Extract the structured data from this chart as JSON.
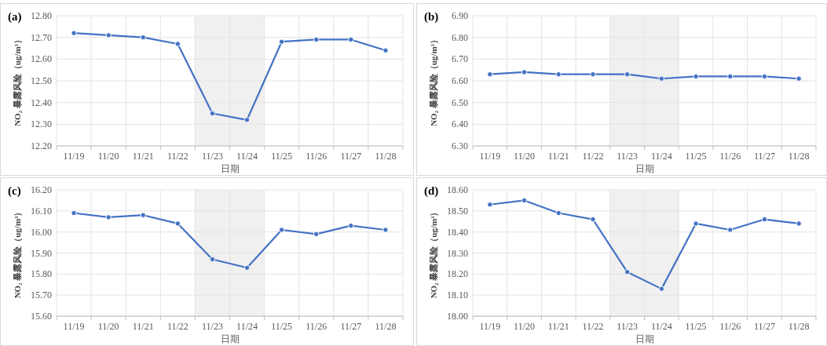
{
  "chart_data": [
    {
      "type": "line",
      "title": "(a)",
      "xlabel": "日期",
      "ylabel": "NO₂ 暴露风险（ug/m³）",
      "categories": [
        "11/19",
        "11/20",
        "11/21",
        "11/22",
        "11/23",
        "11/24",
        "11/25",
        "11/26",
        "11/27",
        "11/28"
      ],
      "series": [
        {
          "color": "#4472c4",
          "values": [
            12.72,
            12.71,
            12.7,
            12.67,
            12.35,
            12.32,
            12.68,
            12.69,
            12.69,
            12.64
          ]
        }
      ],
      "ylim": [
        12.2,
        12.8
      ],
      "yticks": [
        {
          "value": 12.2,
          "label": "12.20"
        },
        {
          "value": 12.3,
          "label": "12.30"
        },
        {
          "value": 12.4,
          "label": "12.40"
        },
        {
          "value": 12.5,
          "label": "12.50"
        },
        {
          "value": 12.6,
          "label": "12.60"
        },
        {
          "value": 12.7,
          "label": "12.70"
        },
        {
          "value": 12.8,
          "label": "12.80"
        }
      ],
      "bands": [
        {
          "axis": "x",
          "from": "11/23",
          "to": "11/24",
          "color": "#f0f0f0"
        }
      ],
      "grid": true,
      "marker": "circle",
      "line_style": "solid"
    },
    {
      "type": "line",
      "title": "(b)",
      "xlabel": "日期",
      "ylabel": "NO₂ 暴露风险（ug/m³）",
      "categories": [
        "11/19",
        "11/20",
        "11/21",
        "11/22",
        "11/23",
        "11/24",
        "11/25",
        "11/26",
        "11/27",
        "11/28"
      ],
      "series": [
        {
          "color": "#4472c4",
          "values": [
            6.63,
            6.64,
            6.63,
            6.63,
            6.63,
            6.61,
            6.62,
            6.62,
            6.62,
            6.61
          ]
        }
      ],
      "ylim": [
        6.3,
        6.9
      ],
      "yticks": [
        {
          "value": 6.3,
          "label": "6.30"
        },
        {
          "value": 6.4,
          "label": "6.40"
        },
        {
          "value": 6.5,
          "label": "6.50"
        },
        {
          "value": 6.6,
          "label": "6.60"
        },
        {
          "value": 6.7,
          "label": "6.70"
        },
        {
          "value": 6.8,
          "label": "6.80"
        },
        {
          "value": 6.9,
          "label": "6.90"
        }
      ],
      "bands": [
        {
          "axis": "x",
          "from": "11/23",
          "to": "11/24",
          "color": "#f0f0f0"
        }
      ],
      "grid": true,
      "marker": "circle",
      "line_style": "solid"
    },
    {
      "type": "line",
      "title": "(c)",
      "xlabel": "日期",
      "ylabel": "NO₂ 暴露风险（ug/m³）",
      "categories": [
        "11/19",
        "11/20",
        "11/21",
        "11/22",
        "11/23",
        "11/24",
        "11/25",
        "11/26",
        "11/27",
        "11/28"
      ],
      "series": [
        {
          "color": "#4472c4",
          "values": [
            16.09,
            16.07,
            16.08,
            16.04,
            15.87,
            15.83,
            16.01,
            15.99,
            16.03,
            16.01
          ]
        }
      ],
      "ylim": [
        15.6,
        16.2
      ],
      "yticks": [
        {
          "value": 15.6,
          "label": "15.60"
        },
        {
          "value": 15.7,
          "label": "15.70"
        },
        {
          "value": 15.8,
          "label": "15.80"
        },
        {
          "value": 15.9,
          "label": "15.90"
        },
        {
          "value": 16.0,
          "label": "16.00"
        },
        {
          "value": 16.1,
          "label": "16.10"
        },
        {
          "value": 16.2,
          "label": "16.20"
        }
      ],
      "bands": [
        {
          "axis": "x",
          "from": "11/23",
          "to": "11/24",
          "color": "#f0f0f0"
        }
      ],
      "grid": true,
      "marker": "circle",
      "line_style": "solid"
    },
    {
      "type": "line",
      "title": "(d)",
      "xlabel": "日期",
      "ylabel": "NO₂ 暴露风险（ug/m³）",
      "categories": [
        "11/19",
        "11/20",
        "11/21",
        "11/22",
        "11/23",
        "11/24",
        "11/25",
        "11/26",
        "11/27",
        "11/28"
      ],
      "series": [
        {
          "color": "#4472c4",
          "values": [
            18.53,
            18.55,
            18.49,
            18.46,
            18.21,
            18.13,
            18.44,
            18.41,
            18.46,
            18.44
          ]
        }
      ],
      "ylim": [
        18.0,
        18.6
      ],
      "yticks": [
        {
          "value": 18.0,
          "label": "18.00"
        },
        {
          "value": 18.1,
          "label": "18.10"
        },
        {
          "value": 18.2,
          "label": "18.20"
        },
        {
          "value": 18.3,
          "label": "18.30"
        },
        {
          "value": 18.4,
          "label": "18.40"
        },
        {
          "value": 18.5,
          "label": "18.50"
        },
        {
          "value": 18.6,
          "label": "18.60"
        }
      ],
      "bands": [
        {
          "axis": "x",
          "from": "11/23",
          "to": "11/24",
          "color": "#f0f0f0"
        }
      ],
      "grid": true,
      "marker": "circle",
      "line_style": "solid"
    }
  ]
}
